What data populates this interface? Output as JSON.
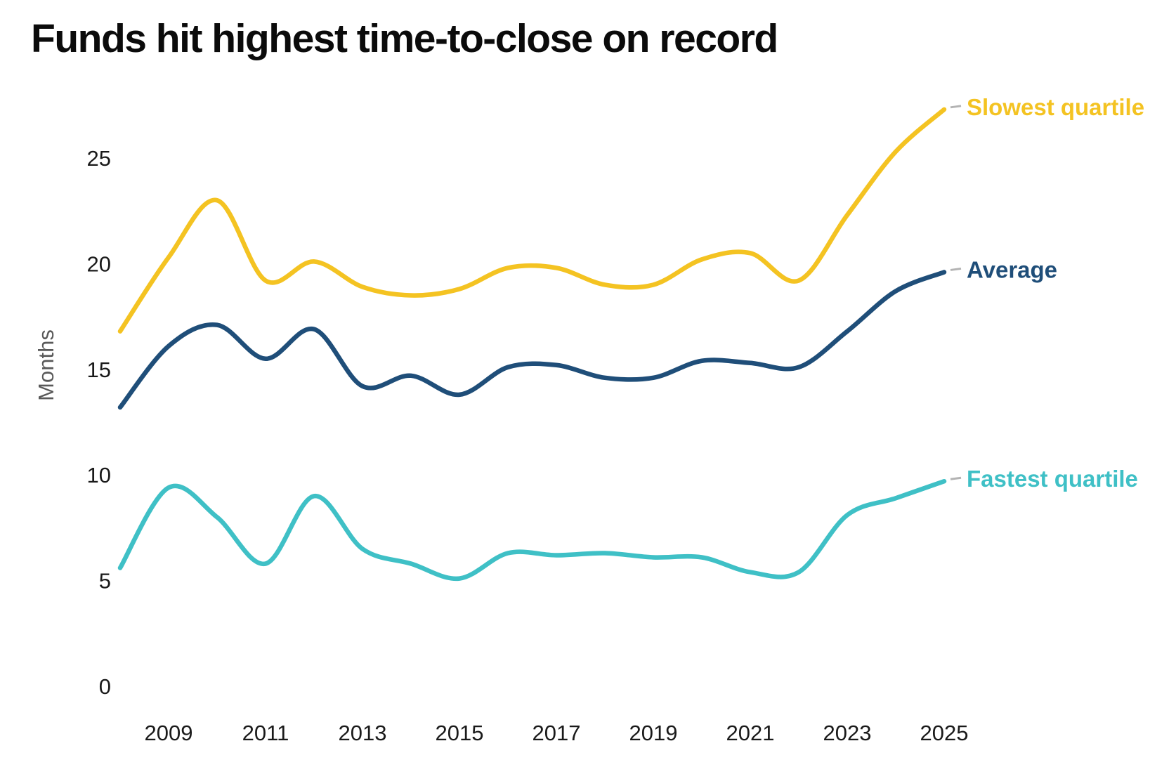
{
  "title": "Funds hit highest time-to-close on record",
  "y_axis": {
    "label": "Months",
    "tick_labels": [
      "0",
      "5",
      "10",
      "15",
      "20",
      "25"
    ]
  },
  "x_axis": {
    "tick_labels": [
      "2009",
      "2011",
      "2013",
      "2015",
      "2017",
      "2019",
      "2021",
      "2023",
      "2025"
    ]
  },
  "series_labels": {
    "slowest": "Slowest quartile",
    "average": "Average",
    "fastest": "Fastest quartile"
  },
  "colors": {
    "slowest": "#F4C322",
    "average": "#1F4E79",
    "fastest": "#3FC0C6",
    "leader_dash": "#b3b3b3",
    "title_text": "#0b0b0b",
    "tick_text": "#1a1a1a",
    "axis_title_text": "#595959",
    "background": "#ffffff"
  },
  "chart_data": {
    "type": "line",
    "title": "Funds hit highest time-to-close on record",
    "xlabel": "",
    "ylabel": "Months",
    "x": [
      2008,
      2009,
      2010,
      2011,
      2012,
      2013,
      2014,
      2015,
      2016,
      2017,
      2018,
      2019,
      2020,
      2021,
      2022,
      2023,
      2024,
      2025
    ],
    "series": [
      {
        "name": "Slowest quartile",
        "color": "#F4C322",
        "values": [
          16.8,
          20.3,
          23.0,
          19.2,
          20.1,
          18.9,
          18.5,
          18.8,
          19.8,
          19.8,
          19.0,
          19.0,
          20.2,
          20.5,
          19.2,
          22.3,
          25.3,
          27.3
        ]
      },
      {
        "name": "Average",
        "color": "#1F4E79",
        "values": [
          13.2,
          16.1,
          17.1,
          15.5,
          16.9,
          14.2,
          14.7,
          13.8,
          15.1,
          15.2,
          14.6,
          14.6,
          15.4,
          15.3,
          15.1,
          16.8,
          18.7,
          19.6
        ]
      },
      {
        "name": "Fastest quartile",
        "color": "#3FC0C6",
        "values": [
          5.6,
          9.4,
          8.0,
          5.8,
          9.0,
          6.5,
          5.8,
          5.1,
          6.3,
          6.2,
          6.3,
          6.1,
          6.1,
          5.4,
          5.4,
          8.1,
          8.9,
          9.7
        ]
      }
    ],
    "ylim": [
      0,
      28.5
    ],
    "yticks": [
      0,
      5,
      10,
      15,
      20,
      25
    ],
    "xticks": [
      2009,
      2011,
      2013,
      2015,
      2017,
      2019,
      2021,
      2023,
      2025
    ],
    "grid": false,
    "legend_position": "end-of-line-labels"
  }
}
